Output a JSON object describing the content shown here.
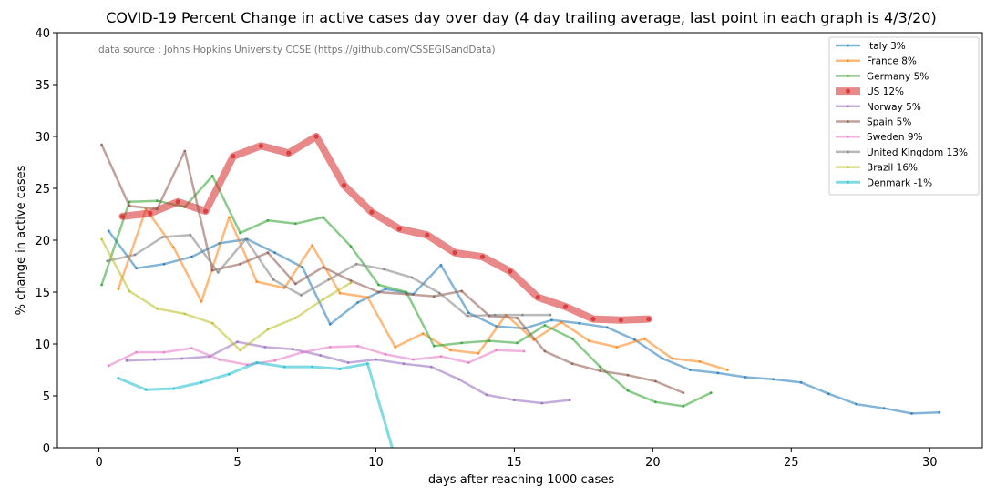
{
  "chart_data": {
    "type": "line",
    "title": "COVID-19 Percent Change in active cases day over day (4 day trailing average, last point in each graph is 4/3/20)",
    "source": "data source : Johns Hopkins University CCSE (https://github.com/CSSEGISandData)",
    "xlabel": "days after reaching 1000 cases",
    "ylabel": "% change in active cases",
    "xlim": [
      -1.5,
      31.9
    ],
    "ylim": [
      0,
      40
    ],
    "xticks": [
      0,
      5,
      10,
      15,
      20,
      25,
      30
    ],
    "yticks": [
      0,
      5,
      10,
      15,
      20,
      25,
      30,
      35,
      40
    ],
    "legend_position": "top-right",
    "grid": false,
    "series": [
      {
        "name": "Italy 3%",
        "color": "#1f77b4",
        "width": 2.5,
        "x": [
          0.35,
          1.35,
          2.35,
          3.35,
          4.35,
          5.35,
          6.35,
          7.35,
          8.35,
          9.35,
          10.35,
          11.35,
          12.35,
          13.35,
          14.35,
          15.35,
          16.35,
          17.35,
          18.35,
          19.35,
          20.35,
          21.35,
          22.35,
          23.35,
          24.35,
          25.35,
          26.35,
          27.35,
          28.35,
          29.35,
          30.35
        ],
        "y": [
          20.9,
          17.3,
          17.7,
          18.4,
          19.7,
          20.1,
          18.8,
          17.4,
          11.9,
          14.0,
          15.3,
          14.8,
          17.6,
          13.0,
          11.7,
          11.5,
          12.3,
          12.0,
          11.6,
          10.4,
          8.6,
          7.5,
          7.2,
          6.8,
          6.6,
          6.3,
          5.2,
          4.2,
          3.8,
          3.3,
          3.4
        ]
      },
      {
        "name": "France 8%",
        "color": "#ff7f0e",
        "width": 2.5,
        "x": [
          0.7,
          1.7,
          2.7,
          3.7,
          4.7,
          5.7,
          6.7,
          7.7,
          8.7,
          9.7,
          10.7,
          11.7,
          12.7,
          13.7,
          14.7,
          15.7,
          16.7,
          17.7,
          18.7,
          19.7,
          20.7,
          21.7,
          22.7
        ],
        "y": [
          15.3,
          23.0,
          19.3,
          14.1,
          22.2,
          16.0,
          15.4,
          19.5,
          14.9,
          14.5,
          9.7,
          11.0,
          9.4,
          9.1,
          12.8,
          10.4,
          12.1,
          10.3,
          9.7,
          10.5,
          8.6,
          8.3,
          7.5
        ]
      },
      {
        "name": "Germany 5%",
        "color": "#2ca02c",
        "width": 2.5,
        "x": [
          0.1,
          1.1,
          2.1,
          3.1,
          4.1,
          5.1,
          6.1,
          7.1,
          8.1,
          9.1,
          10.1,
          11.1,
          12.1,
          13.1,
          14.1,
          15.1,
          16.1,
          17.1,
          18.1,
          19.1,
          20.1,
          21.1,
          22.1
        ],
        "y": [
          15.7,
          23.7,
          23.8,
          23.2,
          26.2,
          20.7,
          21.9,
          21.6,
          22.2,
          19.4,
          15.7,
          15.0,
          9.8,
          10.1,
          10.3,
          10.1,
          11.8,
          10.5,
          7.8,
          5.5,
          4.4,
          4.0,
          5.3
        ]
      },
      {
        "name": "US 12%",
        "color": "#d62728",
        "width": 8,
        "x": [
          0.85,
          1.85,
          2.85,
          3.85,
          4.85,
          5.85,
          6.85,
          7.85,
          8.85,
          9.85,
          10.85,
          11.85,
          12.85,
          13.85,
          14.85,
          15.85,
          16.85,
          17.85,
          18.85,
          19.85
        ],
        "y": [
          22.3,
          22.6,
          23.7,
          22.8,
          28.1,
          29.1,
          28.4,
          30.0,
          25.3,
          22.7,
          21.1,
          20.5,
          18.8,
          18.4,
          17.0,
          14.5,
          13.6,
          12.4,
          12.3,
          12.4
        ]
      },
      {
        "name": "Norway 5%",
        "color": "#9467bd",
        "width": 2.5,
        "x": [
          1,
          2,
          3,
          4,
          5,
          6,
          7,
          8,
          9,
          10,
          11,
          12,
          13,
          14,
          15,
          16,
          17
        ],
        "y": [
          8.4,
          8.5,
          8.6,
          8.8,
          10.2,
          9.7,
          9.5,
          8.9,
          8.2,
          8.5,
          8.1,
          7.8,
          6.6,
          5.1,
          4.6,
          4.3,
          4.6
        ]
      },
      {
        "name": "Spain 5%",
        "color": "#8c564b",
        "width": 2.5,
        "x": [
          0.1,
          1.1,
          2.1,
          3.1,
          4.1,
          5.1,
          6.1,
          7.1,
          8.1,
          9.1,
          10.1,
          11.1,
          12.1,
          13.1,
          14.1,
          15.1,
          16.1,
          17.1,
          18.1,
          19.1,
          20.1,
          21.1
        ],
        "y": [
          29.2,
          23.3,
          23.0,
          28.6,
          17.1,
          17.7,
          18.8,
          15.8,
          17.4,
          16.1,
          15.0,
          14.8,
          14.6,
          15.1,
          12.7,
          12.5,
          9.3,
          8.1,
          7.4,
          7.0,
          6.4,
          5.3
        ]
      },
      {
        "name": "Sweden 9%",
        "color": "#e377c2",
        "width": 2.5,
        "x": [
          0.35,
          1.35,
          2.35,
          3.35,
          4.35,
          5.35,
          6.35,
          7.35,
          8.35,
          9.35,
          10.35,
          11.35,
          12.35,
          13.35,
          14.35,
          15.35
        ],
        "y": [
          7.9,
          9.2,
          9.2,
          9.6,
          8.5,
          8.0,
          8.4,
          9.2,
          9.7,
          9.8,
          9.0,
          8.5,
          8.8,
          8.2,
          9.4,
          9.3
        ]
      },
      {
        "name": "United Kingdom 13%",
        "color": "#7f7f7f",
        "width": 2.5,
        "x": [
          0.3,
          1.3,
          2.3,
          3.3,
          4.3,
          5.3,
          6.3,
          7.3,
          8.3,
          9.3,
          10.3,
          11.3,
          12.3,
          13.3,
          14.3,
          15.3,
          16.3
        ],
        "y": [
          18.0,
          18.6,
          20.3,
          20.5,
          16.9,
          20.1,
          16.2,
          14.7,
          16.2,
          17.7,
          17.2,
          16.4,
          14.9,
          12.7,
          12.8,
          12.8,
          12.8
        ]
      },
      {
        "name": "Brazil 16%",
        "color": "#bcbd22",
        "width": 2.5,
        "x": [
          0.1,
          1.1,
          2.1,
          3.1,
          4.1,
          5.1,
          6.1,
          7.1,
          8.1,
          9.1
        ],
        "y": [
          20.1,
          15.1,
          13.4,
          12.9,
          12.0,
          9.4,
          11.4,
          12.5,
          14.3,
          15.9
        ]
      },
      {
        "name": "Denmark -1%",
        "color": "#17becf",
        "width": 3,
        "x": [
          0.7,
          1.7,
          2.7,
          3.7,
          4.7,
          5.7,
          6.7,
          7.7,
          8.7,
          9.7,
          10.7
        ],
        "y": [
          6.7,
          5.6,
          5.7,
          6.3,
          7.1,
          8.2,
          7.8,
          7.8,
          7.6,
          8.1,
          -1.0
        ]
      }
    ]
  }
}
